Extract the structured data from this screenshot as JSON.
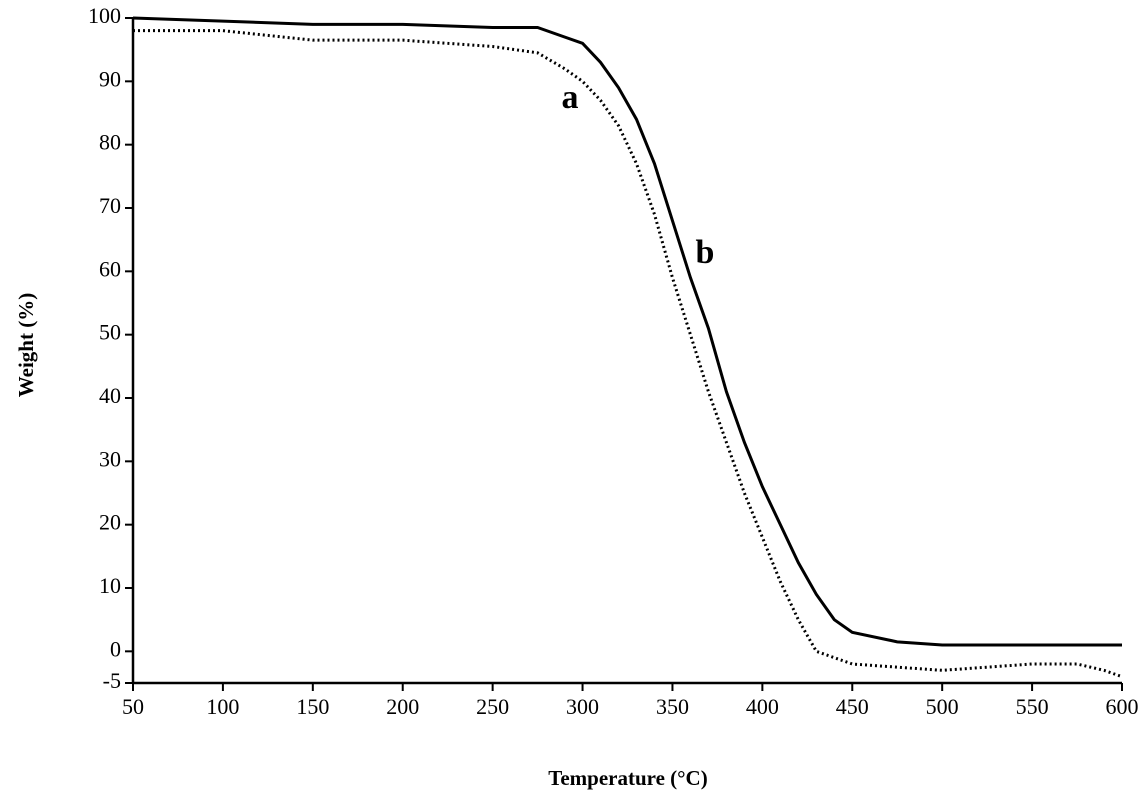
{
  "chart_data": {
    "type": "line",
    "x_label": "Temperature (°C)",
    "y_label": "Weight (%)",
    "x": [
      50,
      100,
      150,
      200,
      250,
      275,
      290,
      300,
      310,
      320,
      330,
      340,
      350,
      360,
      370,
      380,
      390,
      400,
      410,
      420,
      430,
      440,
      450,
      475,
      500,
      525,
      550,
      575,
      590,
      600
    ],
    "series": [
      {
        "name": "a",
        "color": "#000000",
        "line_style": "dotted",
        "values": [
          98,
          98,
          96.5,
          96.5,
          95.5,
          94.5,
          92,
          90,
          87,
          83,
          77,
          69,
          59,
          50,
          41,
          33,
          25,
          18,
          11,
          5,
          0,
          -1,
          -2,
          -2.5,
          -3,
          -2.5,
          -2,
          -2,
          -3,
          -4
        ]
      },
      {
        "name": "b",
        "color": "#000000",
        "line_style": "solid",
        "values": [
          100,
          99.5,
          99,
          99,
          98.5,
          98.5,
          97,
          96,
          93,
          89,
          84,
          77,
          68,
          59,
          51,
          41,
          33,
          26,
          20,
          14,
          9,
          5,
          3,
          1.5,
          1,
          1,
          1,
          1,
          1,
          1
        ]
      }
    ],
    "xlim": [
      50,
      600
    ],
    "ylim": [
      -5,
      100
    ],
    "xticks": [
      50,
      100,
      150,
      200,
      250,
      300,
      350,
      400,
      450,
      500,
      550,
      600
    ],
    "yticks": [
      -5,
      0,
      10,
      20,
      30,
      40,
      50,
      60,
      70,
      80,
      90,
      100
    ],
    "grid": false
  }
}
